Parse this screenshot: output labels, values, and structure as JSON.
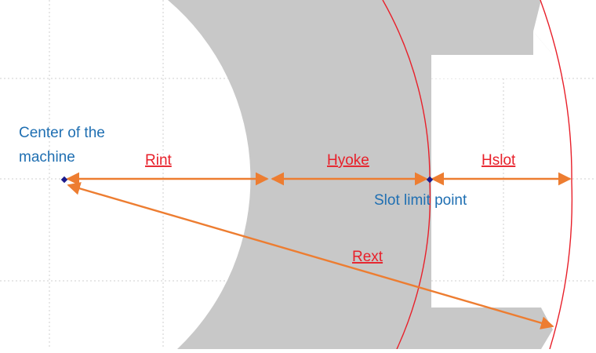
{
  "labels": {
    "center_line1": "Center of the",
    "center_line2": "machine",
    "rint": "Rint",
    "hyoke": "Hyoke",
    "hslot": "Hslot",
    "slot_limit": "Slot limit point",
    "rext": "Rext"
  },
  "colors": {
    "yoke_fill": "#c8c8c8",
    "circle_stroke": "#e8202a",
    "dimension_arrow": "#ed7d31",
    "label_red": "#e8202a",
    "label_blue": "#1f6fb2",
    "point_marker": "#1a1a8c",
    "grid": "#cfcfcf"
  }
}
